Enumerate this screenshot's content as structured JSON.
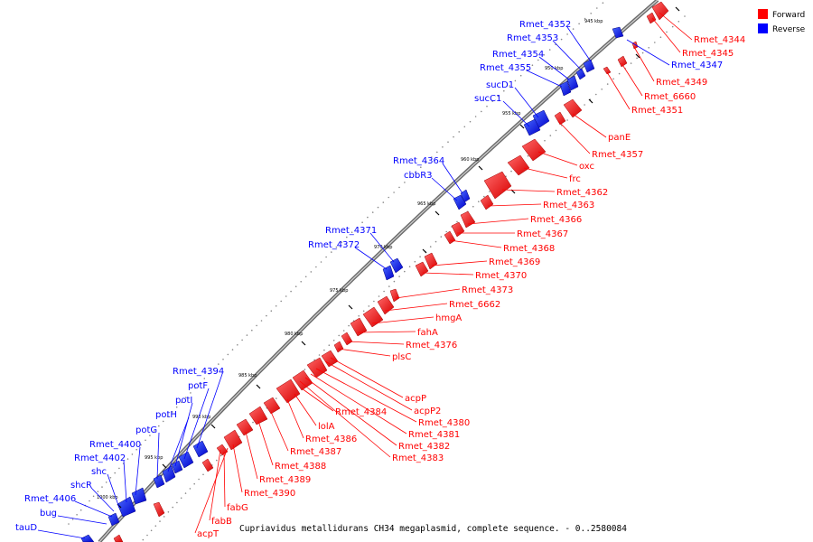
{
  "legend": [
    {
      "label": "Forward",
      "color": "#ff0000"
    },
    {
      "label": "Reverse",
      "color": "#0000ff"
    }
  ],
  "caption": "Cupriavidus metallidurans CH34 megaplasmid, complete sequence. - 0..2580084",
  "colors": {
    "forward": "#ff0000",
    "reverse": "#0000ff",
    "backbone": "#7f7f7f"
  },
  "ticks": [
    "945 kbp",
    "950 kbp",
    "955 kbp",
    "960 kbp",
    "965 kbp",
    "970 kbp",
    "975 kbp",
    "980 kbp",
    "985 kbp",
    "990 kbp",
    "995 kbp",
    "1000 kbp"
  ],
  "genes_forward": [
    "Rmet_4344",
    "Rmet_4345",
    "Rmet_4349",
    "Rmet_6660",
    "Rmet_4351",
    "panE",
    "Rmet_4357",
    "oxc",
    "frc",
    "Rmet_4362",
    "Rmet_4363",
    "Rmet_4366",
    "Rmet_4367",
    "Rmet_4368",
    "Rmet_4369",
    "Rmet_4370",
    "Rmet_4373",
    "Rmet_6662",
    "hmgA",
    "fahA",
    "Rmet_4376",
    "plsC",
    "acpP",
    "acpP2",
    "Rmet_4380",
    "Rmet_4381",
    "Rmet_4382",
    "Rmet_4383",
    "Rmet_4384",
    "lolA",
    "Rmet_4386",
    "Rmet_4387",
    "Rmet_4388",
    "Rmet_4389",
    "Rmet_4390",
    "fabG",
    "fabB",
    "acpT"
  ],
  "genes_reverse": [
    "Rmet_4352",
    "Rmet_4353",
    "Rmet_4347",
    "Rmet_4354",
    "Rmet_4355",
    "sucD1",
    "sucC1",
    "Rmet_4364",
    "cbbR3",
    "Rmet_4371",
    "Rmet_4372",
    "Rmet_4394",
    "potF",
    "potI",
    "potH",
    "potG",
    "Rmet_4400",
    "Rmet_4402",
    "shc",
    "shcR",
    "Rmet_4406",
    "bug",
    "tauD"
  ]
}
